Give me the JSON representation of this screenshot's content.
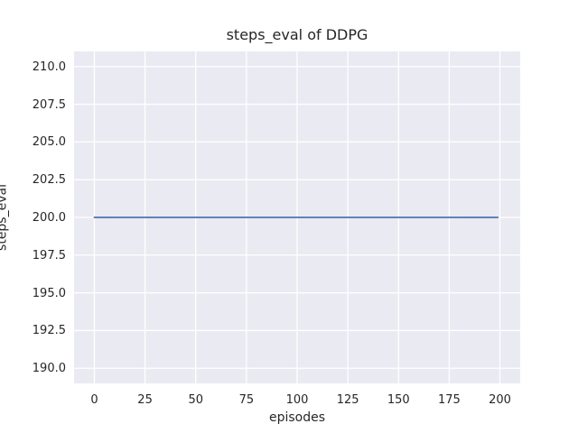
{
  "chart_data": {
    "type": "line",
    "title": "steps_eval of DDPG",
    "xlabel": "episodes",
    "ylabel": "steps_eval",
    "xlim": [
      -10,
      210
    ],
    "ylim": [
      189,
      211
    ],
    "grid": true,
    "legend": false,
    "x_ticks": {
      "values": [
        0,
        25,
        50,
        75,
        100,
        125,
        150,
        175,
        200
      ],
      "labels": [
        "0",
        "25",
        "50",
        "75",
        "100",
        "125",
        "150",
        "175",
        "200"
      ]
    },
    "y_ticks": {
      "values": [
        190.0,
        192.5,
        195.0,
        197.5,
        200.0,
        202.5,
        205.0,
        207.5,
        210.0
      ],
      "labels": [
        "190.0",
        "192.5",
        "195.0",
        "197.5",
        "200.0",
        "202.5",
        "205.0",
        "207.5",
        "210.0"
      ]
    },
    "series": [
      {
        "name": "steps_eval",
        "color": "#4c72b0",
        "x": [
          0,
          199
        ],
        "y": [
          200,
          200
        ]
      }
    ],
    "style": {
      "figure_bg": "#ffffff",
      "plot_bg": "#eaeaf2",
      "grid_color": "#ffffff",
      "text_color": "#262626",
      "grid_width": 1.3,
      "line_width": 1.8
    }
  }
}
